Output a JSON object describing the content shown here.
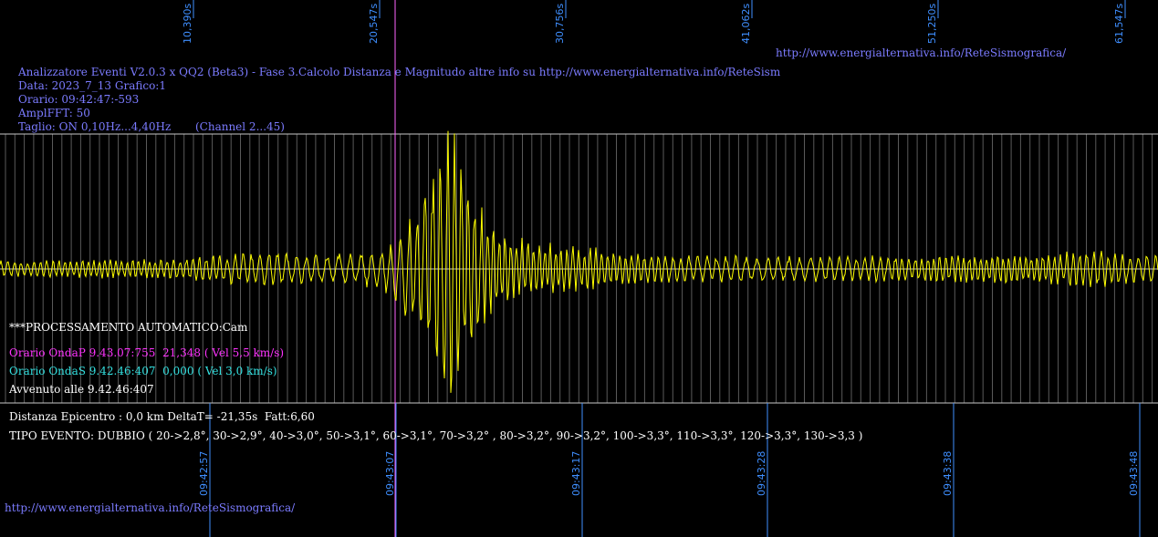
{
  "colors": {
    "background": "#000000",
    "trace": "#ffff00",
    "grid": "#8a8a8a",
    "frame": "#c8c8c8",
    "onda_p_marker": "#ff66ff",
    "onda_s_marker": "#33e0e0",
    "axis_labels": "#3f8fff",
    "header_text": "#7b7bff"
  },
  "header": {
    "url_top": "http://www.energialternativa.info/ReteSismografica/",
    "line1": "Analizzatore Eventi V2.0.3 x QQ2 (Beta3) - Fase 3.Calcolo Distanza e Magnitudo altre info su http://www.energialternativa.info/ReteSism",
    "line2": "Data: 2023_7_13 Grafico:1",
    "line3": "Orario: 09:42:47:-593",
    "line4": "AmplFFT: 50",
    "line5": "Taglio: ON 0,10Hz...4,40Hz       (Channel 2...45)"
  },
  "processing": {
    "title": "***PROCESSAMENTO AUTOMATICO:Cam",
    "onda_p": "Orario OndaP 9.43.07:755  21,348 ( Vel 5,5 km/s)",
    "onda_s": "Orario OndaS 9.42.46:407  0,000 ( Vel 3,0 km/s)",
    "avvenuto": "Avvenuto alle 9.42.46:407"
  },
  "results": {
    "distanza": "Distanza Epicentro : 0,0 km DeltaT= -21,35s  Fatt:6,60",
    "tipo_evento": "TIPO EVENTO: DUBBIO ( 20->2,8°, 30->2,9°, 40->3,0°, 50->3,1°, 60->3,1°, 70->3,2° , 80->3,2°, 90->3,2°, 100->3,3°, 110->3,3°, 120->3,3°, 130->3,3 )"
  },
  "footer": {
    "url": "http://www.energialternativa.info/ReteSismografica/"
  },
  "chart_data": {
    "type": "line",
    "title": "",
    "xlabel": "",
    "ylabel": "",
    "top_tick_labels": [
      "10,390s",
      "20,547s",
      "30,756s",
      "41,062s",
      "51,250s",
      "61,547s"
    ],
    "bottom_tick_labels": [
      "09:42:57",
      "09:43:07",
      "09:43:17",
      "09:43:28",
      "09:43:38",
      "09:43:48"
    ],
    "series": [
      {
        "values_note": "",
        "envelope": [
          [
            0.0,
            0.25
          ],
          [
            9.0,
            0.3
          ],
          [
            12.0,
            0.45
          ],
          [
            14.0,
            0.55
          ],
          [
            18.0,
            0.45
          ],
          [
            20.5,
            0.6
          ],
          [
            21.3,
            0.8
          ],
          [
            22.0,
            1.4
          ],
          [
            23.0,
            2.2
          ],
          [
            24.0,
            3.6
          ],
          [
            24.5,
            4.6
          ],
          [
            25.0,
            3.8
          ],
          [
            25.5,
            2.8
          ],
          [
            26.5,
            1.6
          ],
          [
            28.0,
            1.0
          ],
          [
            30.0,
            0.8
          ],
          [
            33.0,
            0.6
          ],
          [
            36.0,
            0.45
          ],
          [
            41.0,
            0.4
          ],
          [
            50.0,
            0.4
          ],
          [
            55.0,
            0.45
          ],
          [
            60.0,
            0.55
          ],
          [
            63.0,
            0.45
          ]
        ]
      }
    ],
    "xlim": [
      0,
      63.1
    ],
    "onda_p_time_s": 21.348,
    "grid": true
  }
}
